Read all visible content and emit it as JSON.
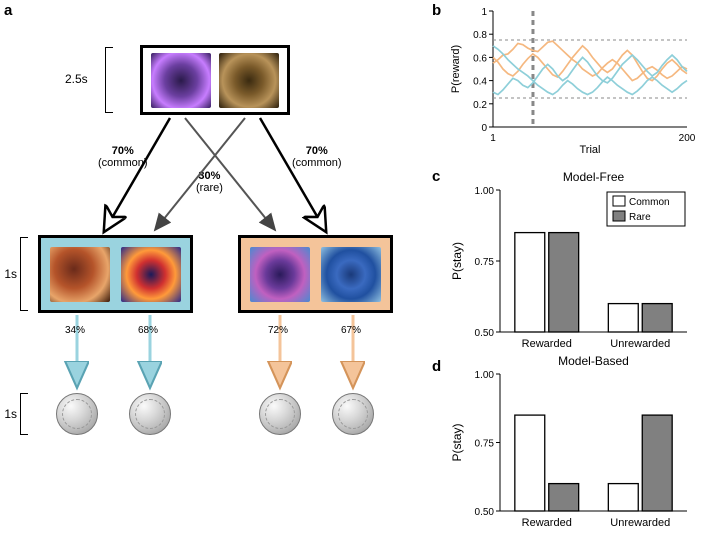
{
  "labels": {
    "a": "a",
    "b": "b",
    "c": "c",
    "d": "d"
  },
  "panelA": {
    "timings": {
      "stage1": "2.5s",
      "stage2": "1s",
      "reward": "1s"
    },
    "transitions": {
      "common_left": {
        "pct": "70%",
        "note": "(common)"
      },
      "common_right": {
        "pct": "70%",
        "note": "(common)"
      },
      "rare": {
        "pct": "30%",
        "note": "(rare)"
      }
    },
    "second_stage_colors": {
      "left_bg": "#9ad3df",
      "right_bg": "#f4c49a"
    },
    "reward_probs": [
      "34%",
      "68%",
      "72%",
      "67%"
    ],
    "fractal_gradients": {
      "s1a": "radial-gradient(circle at 50% 50%, #2a1a4a 0%, #6b3fa0 40%, #c77dff 70%, #351d5e 100%)",
      "s1b": "radial-gradient(circle at 50% 50%, #3a2a10 0%, #7a5a2a 35%, #b8935a 65%, #2a1d0a 100%)",
      "s2la": "radial-gradient(circle at 40% 40%, #6a2a1a 0%, #b5542a 40%, #e8a56a 70%, #3a1a0a 100%)",
      "s2lb": "radial-gradient(circle at 50% 50%, #1a1a5a 0%, #d03030 35%, #ff9a3a 60%, #2a2a8a 100%)",
      "s2ra": "radial-gradient(circle at 50% 50%, #2a1a5a 0%, #6a3a9a 35%, #c060c0 60%, #4a8ad0 100%)",
      "s2rb": "radial-gradient(circle at 50% 50%, #1a3a7a 0%, #3a6ac0 35%, #2050a0 60%, #90c0e0 100%)"
    }
  },
  "panelB": {
    "ylabel": "P(reward)",
    "xlabel": "Trial",
    "xlim": [
      1,
      200
    ],
    "ylim": [
      0,
      1
    ],
    "yticks": [
      0,
      0.2,
      0.4,
      0.6,
      0.8,
      1
    ],
    "xticks": [
      1,
      200
    ],
    "hlines": [
      0.25,
      0.75
    ],
    "vline_x": 42,
    "colors": {
      "series_a": "#f5b880",
      "series_b": "#8ecfd9",
      "hline": "#888888",
      "vline": "#888888"
    },
    "seriesA1": [
      0.55,
      0.58,
      0.62,
      0.63,
      0.67,
      0.72,
      0.71,
      0.68,
      0.66,
      0.65,
      0.69,
      0.73,
      0.74,
      0.7,
      0.66,
      0.62,
      0.58,
      0.55,
      0.5,
      0.47,
      0.44,
      0.46,
      0.51,
      0.55,
      0.58,
      0.55,
      0.5,
      0.45,
      0.4,
      0.42,
      0.46,
      0.5,
      0.52,
      0.49,
      0.45,
      0.42,
      0.44,
      0.48,
      0.52,
      0.5
    ],
    "seriesA2": [
      0.6,
      0.56,
      0.5,
      0.46,
      0.44,
      0.48,
      0.54,
      0.59,
      0.63,
      0.6,
      0.55,
      0.5,
      0.45,
      0.43,
      0.48,
      0.54,
      0.6,
      0.65,
      0.7,
      0.66,
      0.6,
      0.55,
      0.5,
      0.47,
      0.5,
      0.56,
      0.62,
      0.66,
      0.62,
      0.55,
      0.48,
      0.42,
      0.4,
      0.44,
      0.5,
      0.55,
      0.58,
      0.54,
      0.49,
      0.46
    ],
    "seriesB1": [
      0.3,
      0.28,
      0.32,
      0.37,
      0.42,
      0.4,
      0.36,
      0.34,
      0.38,
      0.44,
      0.5,
      0.54,
      0.5,
      0.44,
      0.4,
      0.43,
      0.49,
      0.55,
      0.6,
      0.56,
      0.5,
      0.44,
      0.4,
      0.38,
      0.42,
      0.48,
      0.54,
      0.58,
      0.62,
      0.58,
      0.53,
      0.48,
      0.44,
      0.47,
      0.53,
      0.58,
      0.62,
      0.58,
      0.52,
      0.48
    ],
    "seriesB2": [
      0.7,
      0.67,
      0.63,
      0.58,
      0.54,
      0.5,
      0.47,
      0.44,
      0.4,
      0.36,
      0.33,
      0.3,
      0.28,
      0.31,
      0.36,
      0.4,
      0.37,
      0.33,
      0.3,
      0.28,
      0.3,
      0.34,
      0.39,
      0.43,
      0.4,
      0.36,
      0.33,
      0.3,
      0.28,
      0.31,
      0.35,
      0.4,
      0.43,
      0.4,
      0.36,
      0.33,
      0.3,
      0.33,
      0.37,
      0.4
    ]
  },
  "barCommon": {
    "ylabel": "P(stay)",
    "ylim": [
      0.5,
      1.0
    ],
    "yticks": [
      0.5,
      0.75,
      1.0
    ],
    "xcats": [
      "Rewarded",
      "Unrewarded"
    ],
    "legend": [
      "Common",
      "Rare"
    ],
    "colors": {
      "common_fill": "#ffffff",
      "rare_fill": "#808080",
      "stroke": "#000000",
      "bg": "#ffffff"
    },
    "bar_fontsize": 11
  },
  "panelC": {
    "title": "Model-Free",
    "values": {
      "rewarded_common": 0.85,
      "rewarded_rare": 0.85,
      "unrewarded_common": 0.6,
      "unrewarded_rare": 0.6
    }
  },
  "panelD": {
    "title": "Model-Based",
    "values": {
      "rewarded_common": 0.85,
      "rewarded_rare": 0.6,
      "unrewarded_common": 0.6,
      "unrewarded_rare": 0.85
    }
  }
}
